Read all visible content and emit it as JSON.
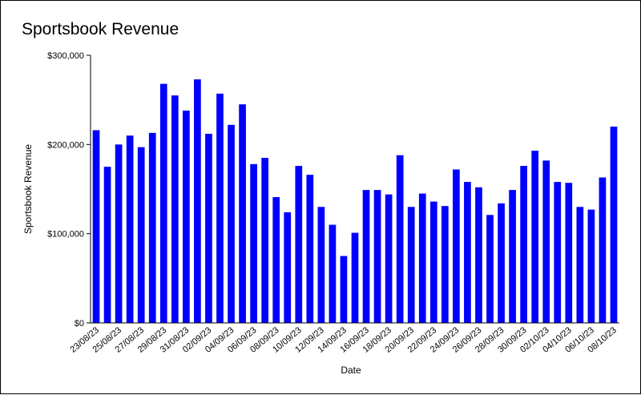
{
  "chart_data": {
    "type": "bar",
    "title": "Sportsbook Revenue",
    "xlabel": "Date",
    "ylabel": "Sportsbook Revenue",
    "ylim": [
      0,
      300000
    ],
    "yticks": [
      "$0",
      "$100,000",
      "$200,000",
      "$300,000"
    ],
    "ytick_values": [
      0,
      100000,
      200000,
      300000
    ],
    "grid": false,
    "legend": "none",
    "bar_color": "#0000ff",
    "categories": [
      "23/08/23",
      "24/08/23",
      "25/08/23",
      "26/08/23",
      "27/08/23",
      "28/08/23",
      "29/08/23",
      "30/08/23",
      "31/08/23",
      "01/09/23",
      "02/09/23",
      "03/09/23",
      "04/09/23",
      "05/09/23",
      "06/09/23",
      "07/09/23",
      "08/09/23",
      "09/09/23",
      "10/09/23",
      "11/09/23",
      "12/09/23",
      "13/09/23",
      "14/09/23",
      "15/09/23",
      "16/09/23",
      "17/09/23",
      "18/09/23",
      "19/09/23",
      "20/09/23",
      "21/09/23",
      "22/09/23",
      "23/09/23",
      "24/09/23",
      "25/09/23",
      "26/09/23",
      "27/09/23",
      "28/09/23",
      "29/09/23",
      "30/09/23",
      "01/10/23",
      "02/10/23",
      "03/10/23",
      "04/10/23",
      "05/10/23",
      "06/10/23",
      "07/10/23",
      "08/10/23"
    ],
    "values": [
      216000,
      175000,
      200000,
      210000,
      197000,
      213000,
      268000,
      255000,
      238000,
      273000,
      212000,
      257000,
      222000,
      245000,
      178000,
      185000,
      141000,
      124000,
      176000,
      166000,
      130000,
      110000,
      75000,
      101000,
      149000,
      149000,
      144000,
      188000,
      130000,
      145000,
      136000,
      131000,
      172000,
      158000,
      152000,
      121000,
      134000,
      149000,
      176000,
      193000,
      182000,
      158000,
      157000,
      130000,
      127000,
      163000,
      220000
    ],
    "xtick_labels": [
      "23/08/23",
      "25/08/23",
      "27/08/23",
      "29/08/23",
      "31/08/23",
      "02/09/23",
      "04/09/23",
      "06/09/23",
      "08/09/23",
      "10/09/23",
      "12/09/23",
      "14/09/23",
      "16/09/23",
      "18/09/23",
      "20/09/23",
      "22/09/23",
      "24/09/23",
      "26/09/23",
      "28/09/23",
      "30/09/23",
      "02/10/23",
      "04/10/23",
      "06/10/23",
      "08/10/23"
    ]
  }
}
